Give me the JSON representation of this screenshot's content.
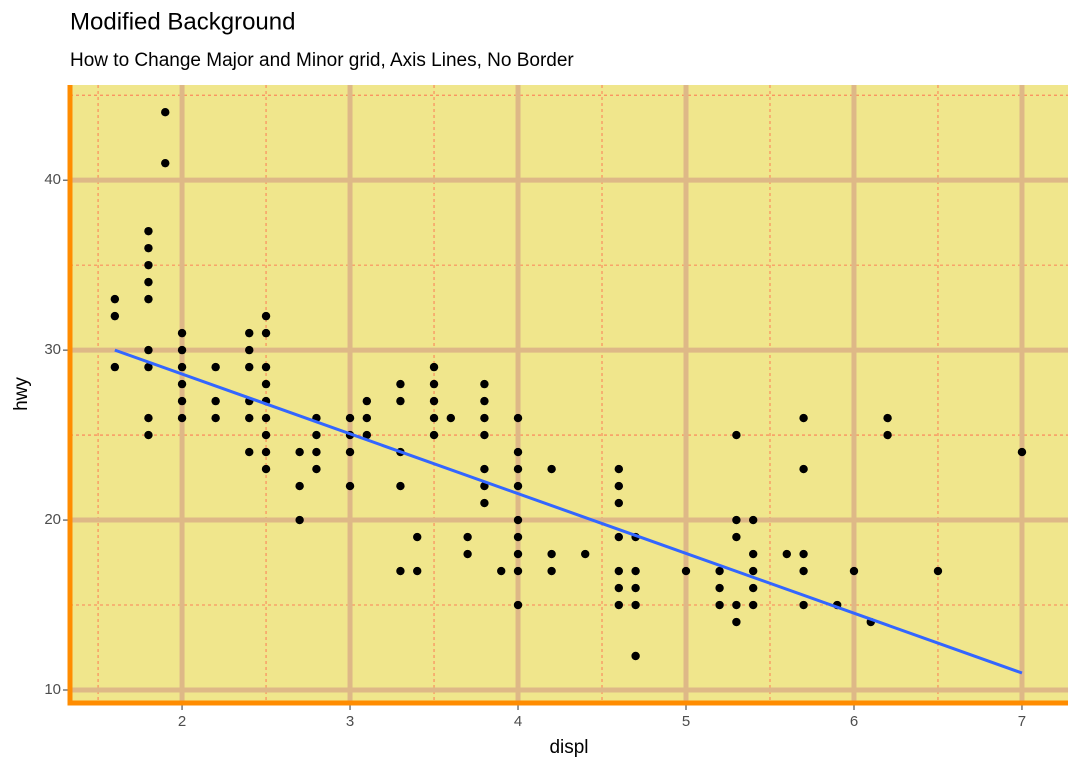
{
  "chart_data": {
    "type": "scatter",
    "title": "Modified Background",
    "subtitle": "How to Change Major and Minor grid, Axis Lines, No Border",
    "x_label": "displ",
    "y_label": "hwy",
    "xlim": [
      1.333,
      7.274
    ],
    "ylim": [
      9.235,
      45.6
    ],
    "xticks": [
      2,
      3,
      4,
      5,
      6,
      7
    ],
    "yticks": [
      10,
      20,
      30,
      40
    ],
    "xminorticks": [
      1.5,
      2.5,
      3.5,
      4.5,
      5.5,
      6.5
    ],
    "yminorticks": [
      15,
      25,
      35,
      45
    ],
    "grid": true,
    "background": "#f0e68c",
    "major_grid_color": "#deb887",
    "minor_grid_color": "#ff6347",
    "axis_color": "#ff8c00",
    "series": [
      {
        "color": "#000000",
        "x": [
          1.6,
          1.6,
          1.6,
          1.8,
          1.8,
          1.8,
          1.8,
          1.8,
          1.8,
          1.8,
          1.8,
          1.8,
          1.9,
          1.9,
          2.0,
          2.0,
          2.0,
          2.0,
          2.0,
          2.0,
          2.2,
          2.2,
          2.2,
          2.4,
          2.4,
          2.4,
          2.4,
          2.4,
          2.4,
          2.5,
          2.5,
          2.5,
          2.5,
          2.5,
          2.5,
          2.5,
          2.5,
          2.5,
          2.7,
          2.7,
          2.7,
          2.8,
          2.8,
          2.8,
          2.8,
          3.0,
          3.0,
          3.0,
          3.0,
          3.1,
          3.1,
          3.1,
          3.3,
          3.3,
          3.3,
          3.3,
          3.3,
          3.4,
          3.4,
          3.5,
          3.5,
          3.5,
          3.5,
          3.5,
          3.6,
          3.7,
          3.7,
          3.8,
          3.8,
          3.8,
          3.8,
          3.8,
          3.8,
          3.8,
          3.9,
          4.0,
          4.0,
          4.0,
          4.0,
          4.0,
          4.0,
          4.0,
          4.0,
          4.0,
          4.2,
          4.2,
          4.2,
          4.4,
          4.6,
          4.6,
          4.6,
          4.6,
          4.6,
          4.6,
          4.6,
          4.7,
          4.7,
          4.7,
          4.7,
          4.7,
          5.0,
          5.2,
          5.2,
          5.2,
          5.3,
          5.3,
          5.3,
          5.3,
          5.3,
          5.4,
          5.4,
          5.4,
          5.4,
          5.4,
          5.6,
          5.7,
          5.7,
          5.7,
          5.7,
          5.7,
          5.9,
          6.0,
          6.1,
          6.2,
          6.2,
          6.5,
          7.0
        ],
        "values": [
          33,
          32,
          29,
          37,
          36,
          35,
          34,
          33,
          30,
          29,
          26,
          25,
          44,
          41,
          31,
          30,
          29,
          28,
          27,
          26,
          29,
          27,
          26,
          31,
          30,
          29,
          27,
          26,
          24,
          32,
          31,
          29,
          28,
          27,
          26,
          25,
          24,
          23,
          24,
          22,
          20,
          26,
          25,
          24,
          23,
          26,
          25,
          24,
          22,
          27,
          26,
          25,
          28,
          27,
          24,
          22,
          17,
          19,
          17,
          29,
          28,
          27,
          26,
          25,
          26,
          19,
          18,
          28,
          27,
          26,
          25,
          23,
          22,
          21,
          17,
          26,
          24,
          23,
          22,
          20,
          19,
          18,
          17,
          15,
          23,
          18,
          17,
          18,
          23,
          22,
          21,
          19,
          17,
          16,
          15,
          19,
          17,
          16,
          15,
          12,
          17,
          17,
          16,
          15,
          25,
          20,
          19,
          15,
          14,
          20,
          18,
          17,
          16,
          15,
          18,
          26,
          23,
          18,
          17,
          15,
          15,
          17,
          14,
          26,
          25,
          17,
          24
        ]
      }
    ],
    "trend": {
      "color": "#3366ff",
      "x": [
        1.6,
        7.0
      ],
      "values": [
        30,
        11
      ]
    }
  }
}
